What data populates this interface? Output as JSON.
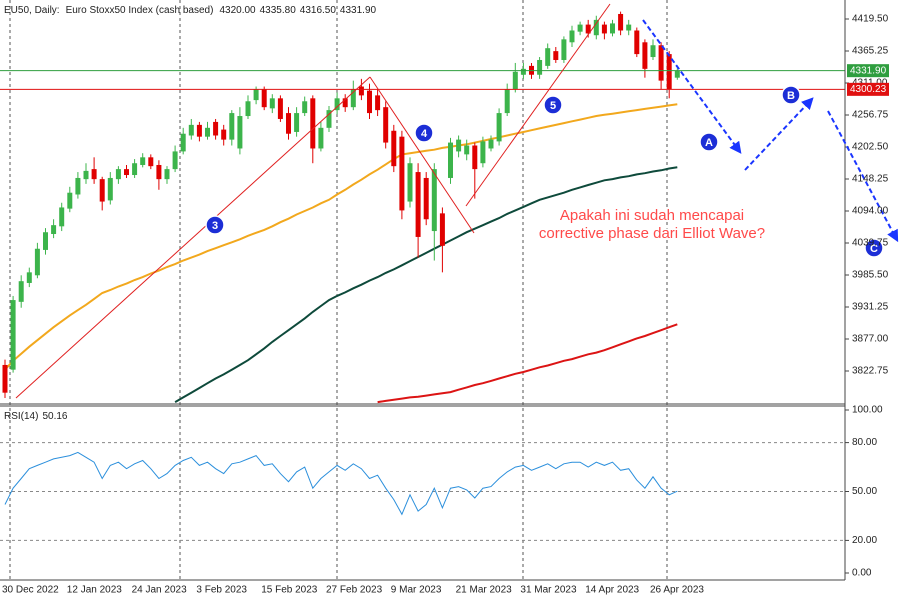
{
  "chart_data": [
    {
      "type": "candlestick",
      "title": "EU50, Daily:",
      "subtitle": "Euro Stoxx50 Index (cash based)",
      "header_values": [
        {
          "value": 4320,
          "label": "4320.00"
        },
        {
          "value": 4335.8,
          "label": "4335.80"
        },
        {
          "value": 4316.5,
          "label": "4316.50"
        },
        {
          "value": 4331.9,
          "label": "4331.90"
        }
      ],
      "categories": [
        "30 Dec 2022",
        null,
        null,
        null,
        null,
        null,
        null,
        null,
        "12 Jan 2023",
        null,
        null,
        null,
        null,
        null,
        null,
        null,
        "24 Jan 2023",
        null,
        null,
        null,
        null,
        null,
        null,
        null,
        "3 Feb 2023",
        null,
        null,
        null,
        null,
        null,
        null,
        null,
        "15 Feb 2023",
        null,
        null,
        null,
        null,
        null,
        null,
        null,
        "27 Feb 2023",
        null,
        null,
        null,
        null,
        null,
        null,
        null,
        "9 Mar 2023",
        null,
        null,
        null,
        null,
        null,
        null,
        null,
        "21 Mar 2023",
        null,
        null,
        null,
        null,
        null,
        null,
        null,
        "31 Mar 2023",
        null,
        null,
        null,
        null,
        null,
        null,
        null,
        "14 Apr 2023",
        null,
        null,
        null,
        null,
        null,
        null,
        null,
        "26 Apr 2023",
        null,
        null,
        null
      ],
      "open": [
        3833,
        3825,
        3940,
        3972,
        3985,
        4028,
        4055,
        4068,
        4098,
        4122,
        4148,
        4165,
        4148,
        4112,
        4148,
        4165,
        4155,
        4172,
        4185,
        4172,
        4148,
        4165,
        4195,
        4222,
        4240,
        4220,
        4245,
        4232,
        4215,
        4200,
        4255,
        4282,
        4300,
        4268,
        4285,
        4260,
        4228,
        4260,
        4285,
        4200,
        4235,
        4265,
        4285,
        4270,
        4305,
        4298,
        4290,
        4270,
        4230,
        4220,
        4110,
        4160,
        4150,
        4060,
        4090,
        4150,
        4195,
        4190,
        4205,
        4175,
        4200,
        4212,
        4260,
        4300,
        4325,
        4340,
        4325,
        4340,
        4365,
        4350,
        4380,
        4398,
        4410,
        4392,
        4410,
        4395,
        4428,
        4400,
        4400,
        4380,
        4355,
        4375,
        4360,
        4320
      ],
      "high": [
        3842,
        3950,
        3985,
        3998,
        4040,
        4065,
        4080,
        4108,
        4135,
        4160,
        4175,
        4185,
        4152,
        4160,
        4170,
        4172,
        4182,
        4192,
        4190,
        4180,
        4170,
        4205,
        4235,
        4250,
        4245,
        4245,
        4250,
        4240,
        4265,
        4270,
        4290,
        4305,
        4305,
        4292,
        4290,
        4270,
        4270,
        4288,
        4290,
        4245,
        4272,
        4295,
        4292,
        4315,
        4318,
        4310,
        4300,
        4280,
        4240,
        4230,
        4185,
        4175,
        4160,
        4175,
        4100,
        4218,
        4222,
        4215,
        4210,
        4220,
        4222,
        4268,
        4310,
        4345,
        4345,
        4345,
        4355,
        4378,
        4372,
        4390,
        4408,
        4415,
        4418,
        4425,
        4415,
        4418,
        4432,
        4418,
        4405,
        4385,
        4385,
        4380,
        4365,
        4335.8
      ],
      "low": [
        3777,
        3820,
        3930,
        3965,
        3980,
        4020,
        4048,
        4060,
        4092,
        4115,
        4140,
        4140,
        4095,
        4105,
        4140,
        4150,
        4150,
        4168,
        4165,
        4130,
        4140,
        4160,
        4190,
        4215,
        4212,
        4215,
        4215,
        4205,
        4205,
        4190,
        4250,
        4275,
        4265,
        4260,
        4245,
        4215,
        4220,
        4255,
        4175,
        4195,
        4228,
        4258,
        4262,
        4265,
        4282,
        4250,
        4255,
        4200,
        4160,
        4080,
        4100,
        4015,
        4070,
        4010,
        3990,
        4140,
        4185,
        4180,
        4115,
        4168,
        4195,
        4205,
        4255,
        4295,
        4318,
        4318,
        4318,
        4335,
        4345,
        4345,
        4372,
        4392,
        4388,
        4385,
        4385,
        4390,
        4392,
        4392,
        4355,
        4320,
        4350,
        4300,
        4285,
        4316.5
      ],
      "close": [
        3786,
        3943,
        3975,
        3990,
        4030,
        4058,
        4070,
        4100,
        4125,
        4150,
        4162,
        4148,
        4110,
        4150,
        4165,
        4155,
        4175,
        4185,
        4170,
        4148,
        4165,
        4195,
        4225,
        4240,
        4220,
        4235,
        4222,
        4215,
        4260,
        4255,
        4280,
        4300,
        4270,
        4285,
        4250,
        4225,
        4260,
        4280,
        4200,
        4235,
        4265,
        4285,
        4270,
        4300,
        4290,
        4260,
        4265,
        4210,
        4170,
        4095,
        4175,
        4050,
        4080,
        4165,
        4035,
        4210,
        4215,
        4205,
        4165,
        4212,
        4215,
        4260,
        4300,
        4330,
        4335,
        4325,
        4350,
        4370,
        4350,
        4385,
        4400,
        4410,
        4395,
        4418,
        4395,
        4412,
        4400,
        4410,
        4360,
        4335,
        4375,
        4315,
        4300,
        4331.9
      ],
      "up_color": "#3cb44b",
      "down_color": "#e00000",
      "series": [
        {
          "color": "#f2a81d",
          "values": [
            3825,
            3840,
            3852,
            3864,
            3875,
            3886,
            3897,
            3907,
            3917,
            3926,
            3935,
            3945,
            3955,
            3960,
            3966,
            3971,
            3977,
            3982,
            3988,
            3993,
            3999,
            4004,
            4010,
            4015,
            4020,
            4026,
            4031,
            4036,
            4041,
            4046,
            4052,
            4057,
            4062,
            4068,
            4075,
            4081,
            4088,
            4094,
            4100,
            4107,
            4113,
            4122,
            4130,
            4139,
            4147,
            4156,
            4164,
            4173,
            4182,
            4190,
            4192,
            4194,
            4196,
            4198,
            4201,
            4203,
            4205,
            4207,
            4210,
            4213,
            4216,
            4219,
            4222,
            4225,
            4228,
            4231,
            4234,
            4237,
            4240,
            4243,
            4246,
            4249,
            4252,
            4255,
            4257,
            4259,
            4261,
            4263,
            4265,
            4267,
            4269,
            4271,
            4273,
            4275
          ]
        },
        {
          "color": "#0e4a3b",
          "values": [
            null,
            null,
            null,
            null,
            null,
            null,
            null,
            null,
            null,
            null,
            null,
            null,
            null,
            null,
            null,
            null,
            null,
            null,
            null,
            null,
            null,
            3770,
            3778,
            3786,
            3794,
            3802,
            3810,
            3817,
            3825,
            3833,
            3841,
            3851,
            3861,
            3872,
            3882,
            3892,
            3902,
            3912,
            3923,
            3933,
            3943,
            3950,
            3956,
            3963,
            3969,
            3976,
            3982,
            3989,
            3995,
            4002,
            4009,
            4016,
            4023,
            4030,
            4037,
            4044,
            4051,
            4058,
            4064,
            4070,
            4076,
            4082,
            4089,
            4095,
            4101,
            4107,
            4113,
            4117,
            4121,
            4125,
            4130,
            4134,
            4138,
            4142,
            4146,
            4148,
            4151,
            4153,
            4156,
            4158,
            4161,
            4163,
            4166,
            4168
          ]
        },
        {
          "color": "#dc1414",
          "values": [
            null,
            null,
            null,
            null,
            null,
            null,
            null,
            null,
            null,
            null,
            null,
            null,
            null,
            null,
            null,
            null,
            null,
            null,
            null,
            null,
            null,
            null,
            null,
            null,
            null,
            null,
            null,
            null,
            null,
            null,
            null,
            null,
            null,
            null,
            null,
            null,
            null,
            null,
            null,
            null,
            null,
            null,
            null,
            null,
            null,
            null,
            3770,
            3772,
            3774,
            3776,
            3778,
            3779,
            3781,
            3783,
            3785,
            3787,
            3791,
            3795,
            3799,
            3802,
            3806,
            3810,
            3814,
            3818,
            3821,
            3825,
            3829,
            3832,
            3836,
            3840,
            3843,
            3847,
            3851,
            3854,
            3858,
            3863,
            3868,
            3873,
            3878,
            3882,
            3887,
            3892,
            3897,
            3902
          ]
        }
      ],
      "ylim": [
        3768.5,
        4451.7
      ],
      "yticks": [
        {
          "value": 4419.5,
          "label": "4419.50"
        },
        {
          "value": 4365.25,
          "label": "4365.25"
        },
        {
          "value": 4311,
          "label": "4311.00"
        },
        {
          "value": 4256.75,
          "label": "4256.75"
        },
        {
          "value": 4202.5,
          "label": "4202.50"
        },
        {
          "value": 4148.25,
          "label": "4148.25"
        },
        {
          "value": 4094,
          "label": "4094.00"
        },
        {
          "value": 4039.75,
          "label": "4039.75"
        },
        {
          "value": 3985.5,
          "label": "3985.50"
        },
        {
          "value": 3931.25,
          "label": "3931.25"
        },
        {
          "value": 3877,
          "label": "3877.00"
        },
        {
          "value": 3822.75,
          "label": "3822.75"
        }
      ],
      "price_lines": [
        {
          "value": 4331.9,
          "label": "4331.90",
          "color": "#2f9e3f"
        },
        {
          "value": 4300.23,
          "label": "4300.23",
          "color": "#e01010"
        }
      ],
      "wave_labels": [
        "3",
        "4",
        "5",
        "A",
        "B",
        "C"
      ],
      "annotation": [
        "Apakah ini sudah mencapai",
        "corrective phase dari Elliot Wave?"
      ]
    },
    {
      "type": "line",
      "title": "RSI(14)",
      "last": 50.16,
      "color": "#2b8fdc",
      "values": [
        42,
        52,
        58,
        64,
        66,
        68,
        70,
        71,
        72,
        74,
        71,
        68,
        58,
        66,
        68,
        64,
        67,
        69,
        64,
        58,
        61,
        66,
        69,
        71,
        66,
        68,
        64,
        61,
        67,
        68,
        70,
        72,
        66,
        67,
        61,
        56,
        62,
        65,
        52,
        58,
        62,
        66,
        63,
        67,
        64,
        58,
        60,
        52,
        45,
        36,
        48,
        38,
        42,
        52,
        40,
        52,
        53,
        51,
        46,
        52,
        53,
        58,
        62,
        65,
        66,
        63,
        65,
        67,
        64,
        67,
        68,
        68,
        65,
        68,
        66,
        68,
        63,
        64,
        57,
        52,
        59,
        52,
        48,
        50.16
      ],
      "ylim": [
        0,
        100
      ],
      "yticks": [
        {
          "value": 100,
          "label": "100.00"
        },
        {
          "value": 80,
          "label": "80.00"
        },
        {
          "value": 50,
          "label": "50.00"
        },
        {
          "value": 20,
          "label": "20.00"
        },
        {
          "value": 0,
          "label": "0.00"
        }
      ],
      "grid": true
    }
  ]
}
